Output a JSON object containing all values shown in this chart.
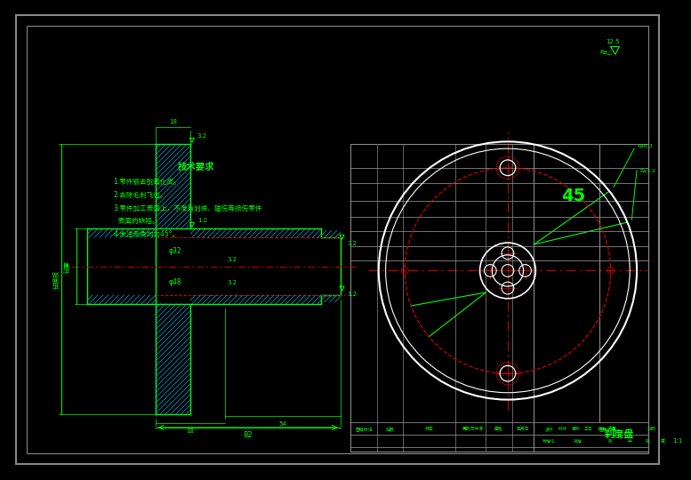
{
  "bg_color": "#000000",
  "border_color": "#888888",
  "green": "#00FF00",
  "red": "#CC0000",
  "white": "#FFFFFF",
  "hatch_color": "#00AADD",
  "title": "刹度盘",
  "material": "45",
  "tech_title": "技术要求",
  "tech_lines": [
    "1.零件锻去脱氧化皮。",
    "2.去除毛刺飞边。",
    "3.零件加工表面上，不准有划痕、磕伤等损伤零件",
    "  表面的缺陷。",
    "4.未注倒角均为45°。"
  ],
  "scale_val": "1:1",
  "roughness_label": "12.5",
  "roughness_label2": "Ra△"
}
